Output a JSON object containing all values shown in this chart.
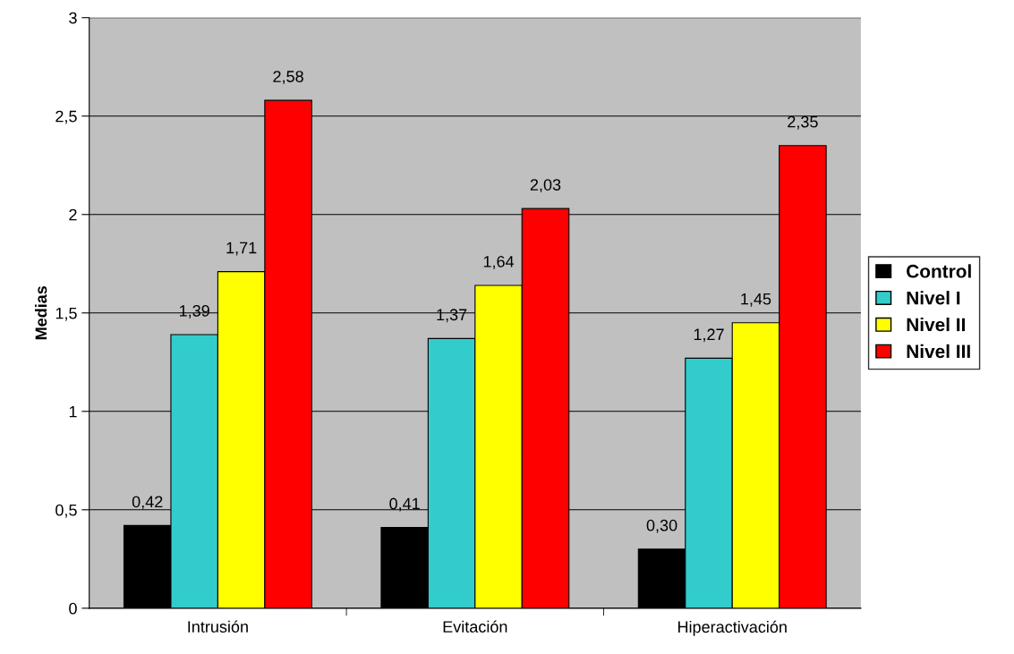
{
  "chart_data": {
    "type": "bar",
    "ylabel": "Medias",
    "categories": [
      "Intrusión",
      "Evitación",
      "Hiperactivación"
    ],
    "series": [
      {
        "name": "Control",
        "color": "#000000",
        "values": [
          0.42,
          0.41,
          0.3
        ],
        "value_labels": [
          "0,42",
          "0,41",
          "0,30"
        ]
      },
      {
        "name": "Nivel I",
        "color": "#33cccc",
        "values": [
          1.39,
          1.37,
          1.27
        ],
        "value_labels": [
          "1,39",
          "1,37",
          "1,27"
        ]
      },
      {
        "name": "Nivel II",
        "color": "#ffff00",
        "values": [
          1.71,
          1.64,
          1.45
        ],
        "value_labels": [
          "1,71",
          "1,64",
          "1,45"
        ]
      },
      {
        "name": "Nivel III",
        "color": "#ff0000",
        "values": [
          2.58,
          2.03,
          2.35
        ],
        "value_labels": [
          "2,58",
          "2,03",
          "2,35"
        ]
      }
    ],
    "ylim": [
      0,
      3
    ],
    "yticks": [
      0,
      {
        "value": 0.5,
        "label": "0,5"
      },
      1,
      {
        "value": 1.5,
        "label": "1,5"
      },
      2,
      {
        "value": 2.5,
        "label": "2,5"
      },
      3
    ],
    "grid": "y",
    "legend": "right"
  }
}
